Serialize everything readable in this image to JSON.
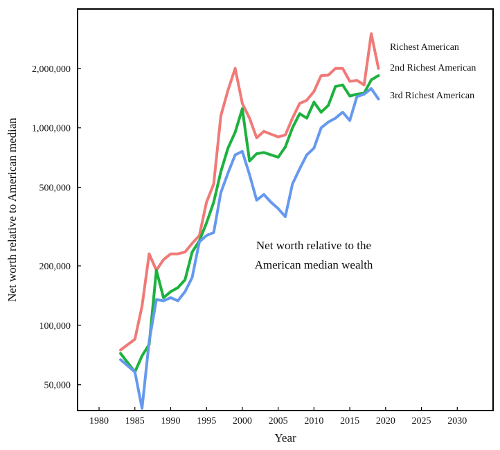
{
  "chart_data": {
    "type": "line",
    "xlabel": "Year",
    "ylabel": "Net worth relative to American median",
    "xlim": [
      1977,
      2035
    ],
    "ylim": [
      37000,
      4000000
    ],
    "yscale": "log",
    "grid": false,
    "x_ticks": [
      1980,
      1985,
      1990,
      1995,
      2000,
      2005,
      2010,
      2015,
      2020,
      2025,
      2030
    ],
    "x_tick_labels": [
      "1980",
      "1985",
      "1990",
      "1995",
      "2000",
      "2005",
      "2010",
      "2015",
      "2020",
      "2025",
      "2030"
    ],
    "y_ticks": [
      50000,
      100000,
      200000,
      500000,
      1000000,
      2000000
    ],
    "y_tick_labels": [
      "50,000",
      "100,000",
      "200,000",
      "500,000",
      "1,000,000",
      "2,000,000"
    ],
    "x": [
      1983,
      1985,
      1986,
      1987,
      1988,
      1989,
      1990,
      1991,
      1992,
      1993,
      1994,
      1995,
      1996,
      1997,
      1998,
      1999,
      2000,
      2001,
      2002,
      2003,
      2004,
      2005,
      2006,
      2007,
      2008,
      2009,
      2010,
      2011,
      2012,
      2013,
      2014,
      2015,
      2016,
      2017,
      2018,
      2019
    ],
    "series": [
      {
        "name": "Richest American",
        "color": "#f07a78",
        "values": [
          75000,
          85000,
          125000,
          230000,
          190000,
          215000,
          230000,
          230000,
          235000,
          260000,
          285000,
          420000,
          520000,
          1150000,
          1550000,
          2000000,
          1330000,
          1120000,
          890000,
          960000,
          930000,
          900000,
          920000,
          1120000,
          1330000,
          1380000,
          1530000,
          1840000,
          1850000,
          2000000,
          2000000,
          1720000,
          1740000,
          1650000,
          3000000,
          2000000
        ]
      },
      {
        "name": "2nd Richest American",
        "color": "#1db13e",
        "values": [
          72000,
          58000,
          70000,
          80000,
          190000,
          138000,
          148000,
          155000,
          170000,
          235000,
          268000,
          330000,
          420000,
          600000,
          790000,
          950000,
          1250000,
          680000,
          740000,
          750000,
          730000,
          710000,
          800000,
          1000000,
          1180000,
          1120000,
          1350000,
          1200000,
          1300000,
          1620000,
          1650000,
          1450000,
          1480000,
          1500000,
          1750000,
          1840000
        ]
      },
      {
        "name": "3rd Richest American",
        "color": "#6699ee",
        "values": [
          67000,
          58000,
          38000,
          83000,
          135000,
          133000,
          138000,
          133000,
          148000,
          175000,
          265000,
          285000,
          295000,
          470000,
          590000,
          730000,
          760000,
          580000,
          430000,
          460000,
          420000,
          390000,
          355000,
          520000,
          620000,
          730000,
          790000,
          1000000,
          1070000,
          1120000,
          1200000,
          1090000,
          1440000,
          1480000,
          1580000,
          1400000
        ]
      }
    ],
    "annotation": [
      "Net worth relative to the",
      "American median wealth"
    ]
  }
}
